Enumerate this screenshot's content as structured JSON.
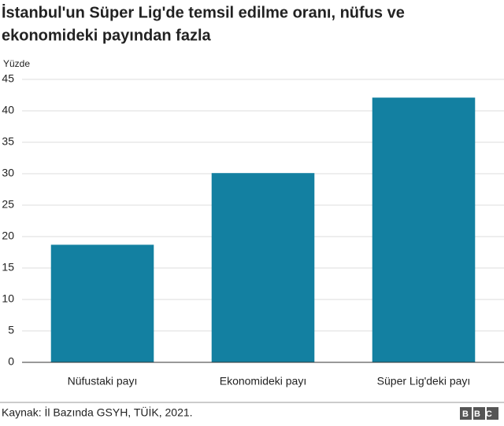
{
  "chart_data": {
    "type": "bar",
    "title": [
      "İstanbul'un Süper Lig'de temsil edilme oranı, nüfus ve",
      "ekonomideki payından fazla"
    ],
    "y_label": "Yüzde",
    "categories": [
      "Nüfustaki payı",
      "Ekonomideki payı",
      "Süper Lig'deki payı"
    ],
    "values": [
      18.7,
      30.1,
      42.1
    ],
    "color": "#1380a1",
    "ylim": [
      0,
      45
    ],
    "yticks": [
      0,
      5,
      10,
      15,
      20,
      25,
      30,
      35,
      40,
      45
    ],
    "grid": true,
    "source": "Kaynak: İl Bazında GSYH, TÜİK, 2021.",
    "logo": "BBC"
  }
}
